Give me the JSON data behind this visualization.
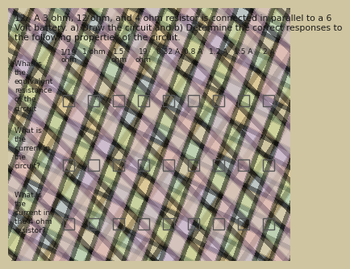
{
  "title_line1": "12.  A 3 ohm, 12 ohm, and 4 ohm resistor is connected in parallel to a 6",
  "title_line2": "Volt battery. a) Draw the circuit and b) Determine the correct responses to",
  "title_line3": "the following properties of the circuit.",
  "background_color": "#cfc5a0",
  "column_headers": [
    "1/19\nohm",
    "1 ohm",
    "1.5\nohm",
    "19\nohm",
    "0.32 A",
    "0.8 A",
    "1.2 A",
    "1.5 A",
    "2 A"
  ],
  "row_labels": [
    "What is\nthe\nequivalent\nresistance\nof the\ncircuit",
    "What is\nthe\ncurrent in\nthe\ncircuit?",
    "What is\nthe\ncurrent in\nthe 4 ohm\nresistor?"
  ],
  "num_rows": 3,
  "num_cols": 9,
  "text_color": "#1a1a1a",
  "header_fontsize": 6.5,
  "label_fontsize": 6.5,
  "title_fontsize": 7.8,
  "checkbox_edge_color": "#555555",
  "checkbox_face_color": "none",
  "wave_colors": [
    "#c8d8f0",
    "#f0d8c0",
    "#d0e8c0",
    "#e8c8e0"
  ],
  "wave_alpha": 0.45
}
